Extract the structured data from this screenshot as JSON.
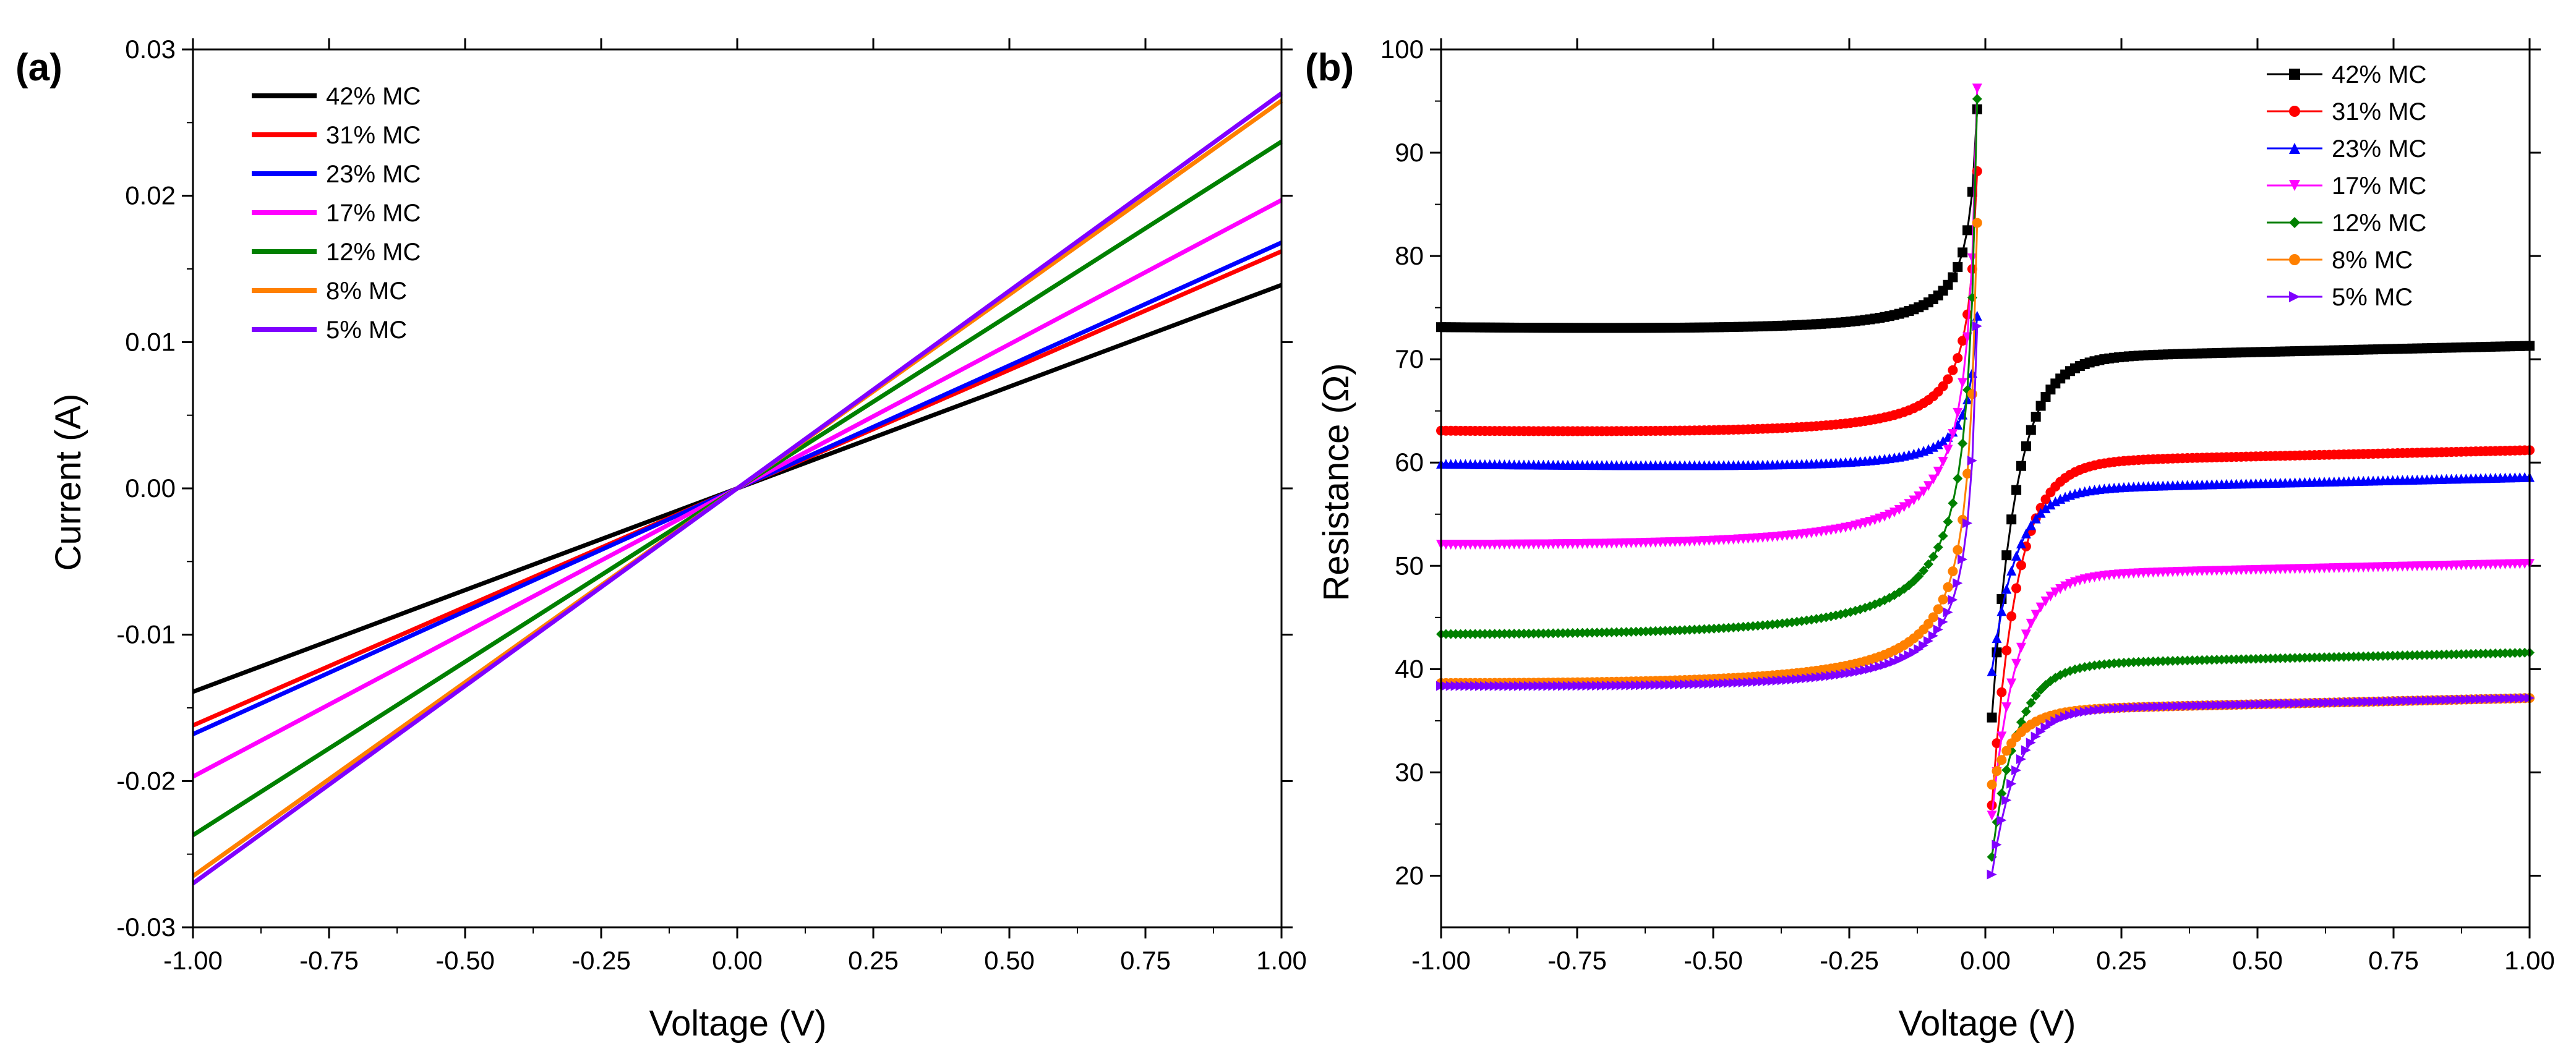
{
  "chart_data": [
    {
      "panel_label": "(a)",
      "type": "line",
      "xlabel": "Voltage (V)",
      "ylabel": "Current (A)",
      "xlim": [
        -1.0,
        1.0
      ],
      "ylim": [
        -0.03,
        0.03
      ],
      "xticks": [
        -1.0,
        -0.75,
        -0.5,
        -0.25,
        0.0,
        0.25,
        0.5,
        0.75,
        1.0
      ],
      "xtick_labels": [
        "-1.00",
        "-0.75",
        "-0.50",
        "-0.25",
        "0.00",
        "0.25",
        "0.50",
        "0.75",
        "1.00"
      ],
      "yticks": [
        -0.03,
        -0.02,
        -0.01,
        0.0,
        0.01,
        0.02,
        0.03
      ],
      "ytick_labels": [
        "-0.03",
        "-0.02",
        "-0.01",
        "0.00",
        "0.01",
        "0.02",
        "0.03"
      ],
      "legend_position": "top-left",
      "series": [
        {
          "name": "42% MC",
          "color": "#000000",
          "x": [
            -1.0,
            1.0
          ],
          "y": [
            -0.0139,
            0.0139
          ]
        },
        {
          "name": "31% MC",
          "color": "#ff0000",
          "x": [
            -1.0,
            1.0
          ],
          "y": [
            -0.0162,
            0.0162
          ]
        },
        {
          "name": "23% MC",
          "color": "#0000ff",
          "x": [
            -1.0,
            1.0
          ],
          "y": [
            -0.0168,
            0.0168
          ]
        },
        {
          "name": "17% MC",
          "color": "#ff00ff",
          "x": [
            -1.0,
            1.0
          ],
          "y": [
            -0.0197,
            0.0197
          ]
        },
        {
          "name": "12% MC",
          "color": "#008000",
          "x": [
            -1.0,
            1.0
          ],
          "y": [
            -0.0237,
            0.0237
          ]
        },
        {
          "name": "8% MC",
          "color": "#ff8000",
          "x": [
            -1.0,
            1.0
          ],
          "y": [
            -0.0265,
            0.0265
          ]
        },
        {
          "name": "5% MC",
          "color": "#8000ff",
          "x": [
            -1.0,
            1.0
          ],
          "y": [
            -0.027,
            0.027
          ]
        }
      ]
    },
    {
      "panel_label": "(b)",
      "type": "line",
      "xlabel": "Voltage (V)",
      "ylabel": "Resistance (Ω)",
      "xlim": [
        -1.0,
        1.0
      ],
      "ylim": [
        15,
        100
      ],
      "xticks": [
        -1.0,
        -0.75,
        -0.5,
        -0.25,
        0.0,
        0.25,
        0.5,
        0.75,
        1.0
      ],
      "xtick_labels": [
        "-1.00",
        "-0.75",
        "-0.50",
        "-0.25",
        "0.00",
        "0.25",
        "0.50",
        "0.75",
        "1.00"
      ],
      "yticks": [
        20,
        30,
        40,
        50,
        60,
        70,
        80,
        90,
        100
      ],
      "ytick_labels": [
        "20",
        "30",
        "40",
        "50",
        "60",
        "70",
        "80",
        "90",
        "100"
      ],
      "legend_position": "top-right",
      "series": [
        {
          "name": "42% MC",
          "color": "#000000",
          "marker": "square",
          "R_neg_base": 72.7,
          "R_neg_peak": 95,
          "R_pos_end": 71.3,
          "R_pos_min": 36.5
        },
        {
          "name": "31% MC",
          "color": "#ff0000",
          "marker": "circle",
          "R_neg_base": 62.6,
          "R_neg_peak": 89,
          "R_pos_end": 61.2,
          "R_pos_min": 28.0
        },
        {
          "name": "23% MC",
          "color": "#0000ff",
          "marker": "triangle-up",
          "R_neg_base": 59.6,
          "R_neg_peak": 75,
          "R_pos_end": 58.6,
          "R_pos_min": 41.0
        },
        {
          "name": "17% MC",
          "color": "#ff00ff",
          "marker": "triangle-down",
          "R_neg_base": 51.2,
          "R_neg_peak": 97,
          "R_pos_end": 50.2,
          "R_pos_min": 27.0
        },
        {
          "name": "12% MC",
          "color": "#008000",
          "marker": "diamond",
          "R_neg_base": 42.4,
          "R_neg_peak": 96,
          "R_pos_end": 41.6,
          "R_pos_min": 23.0
        },
        {
          "name": "8% MC",
          "color": "#ff8000",
          "marker": "circle",
          "R_neg_base": 37.8,
          "R_neg_peak": 84,
          "R_pos_end": 37.2,
          "R_pos_min": 30.0
        },
        {
          "name": "5% MC",
          "color": "#8000ff",
          "marker": "triangle-right",
          "R_neg_base": 37.7,
          "R_neg_peak": 74,
          "R_pos_end": 37.2,
          "R_pos_min": 21.3
        }
      ]
    }
  ]
}
